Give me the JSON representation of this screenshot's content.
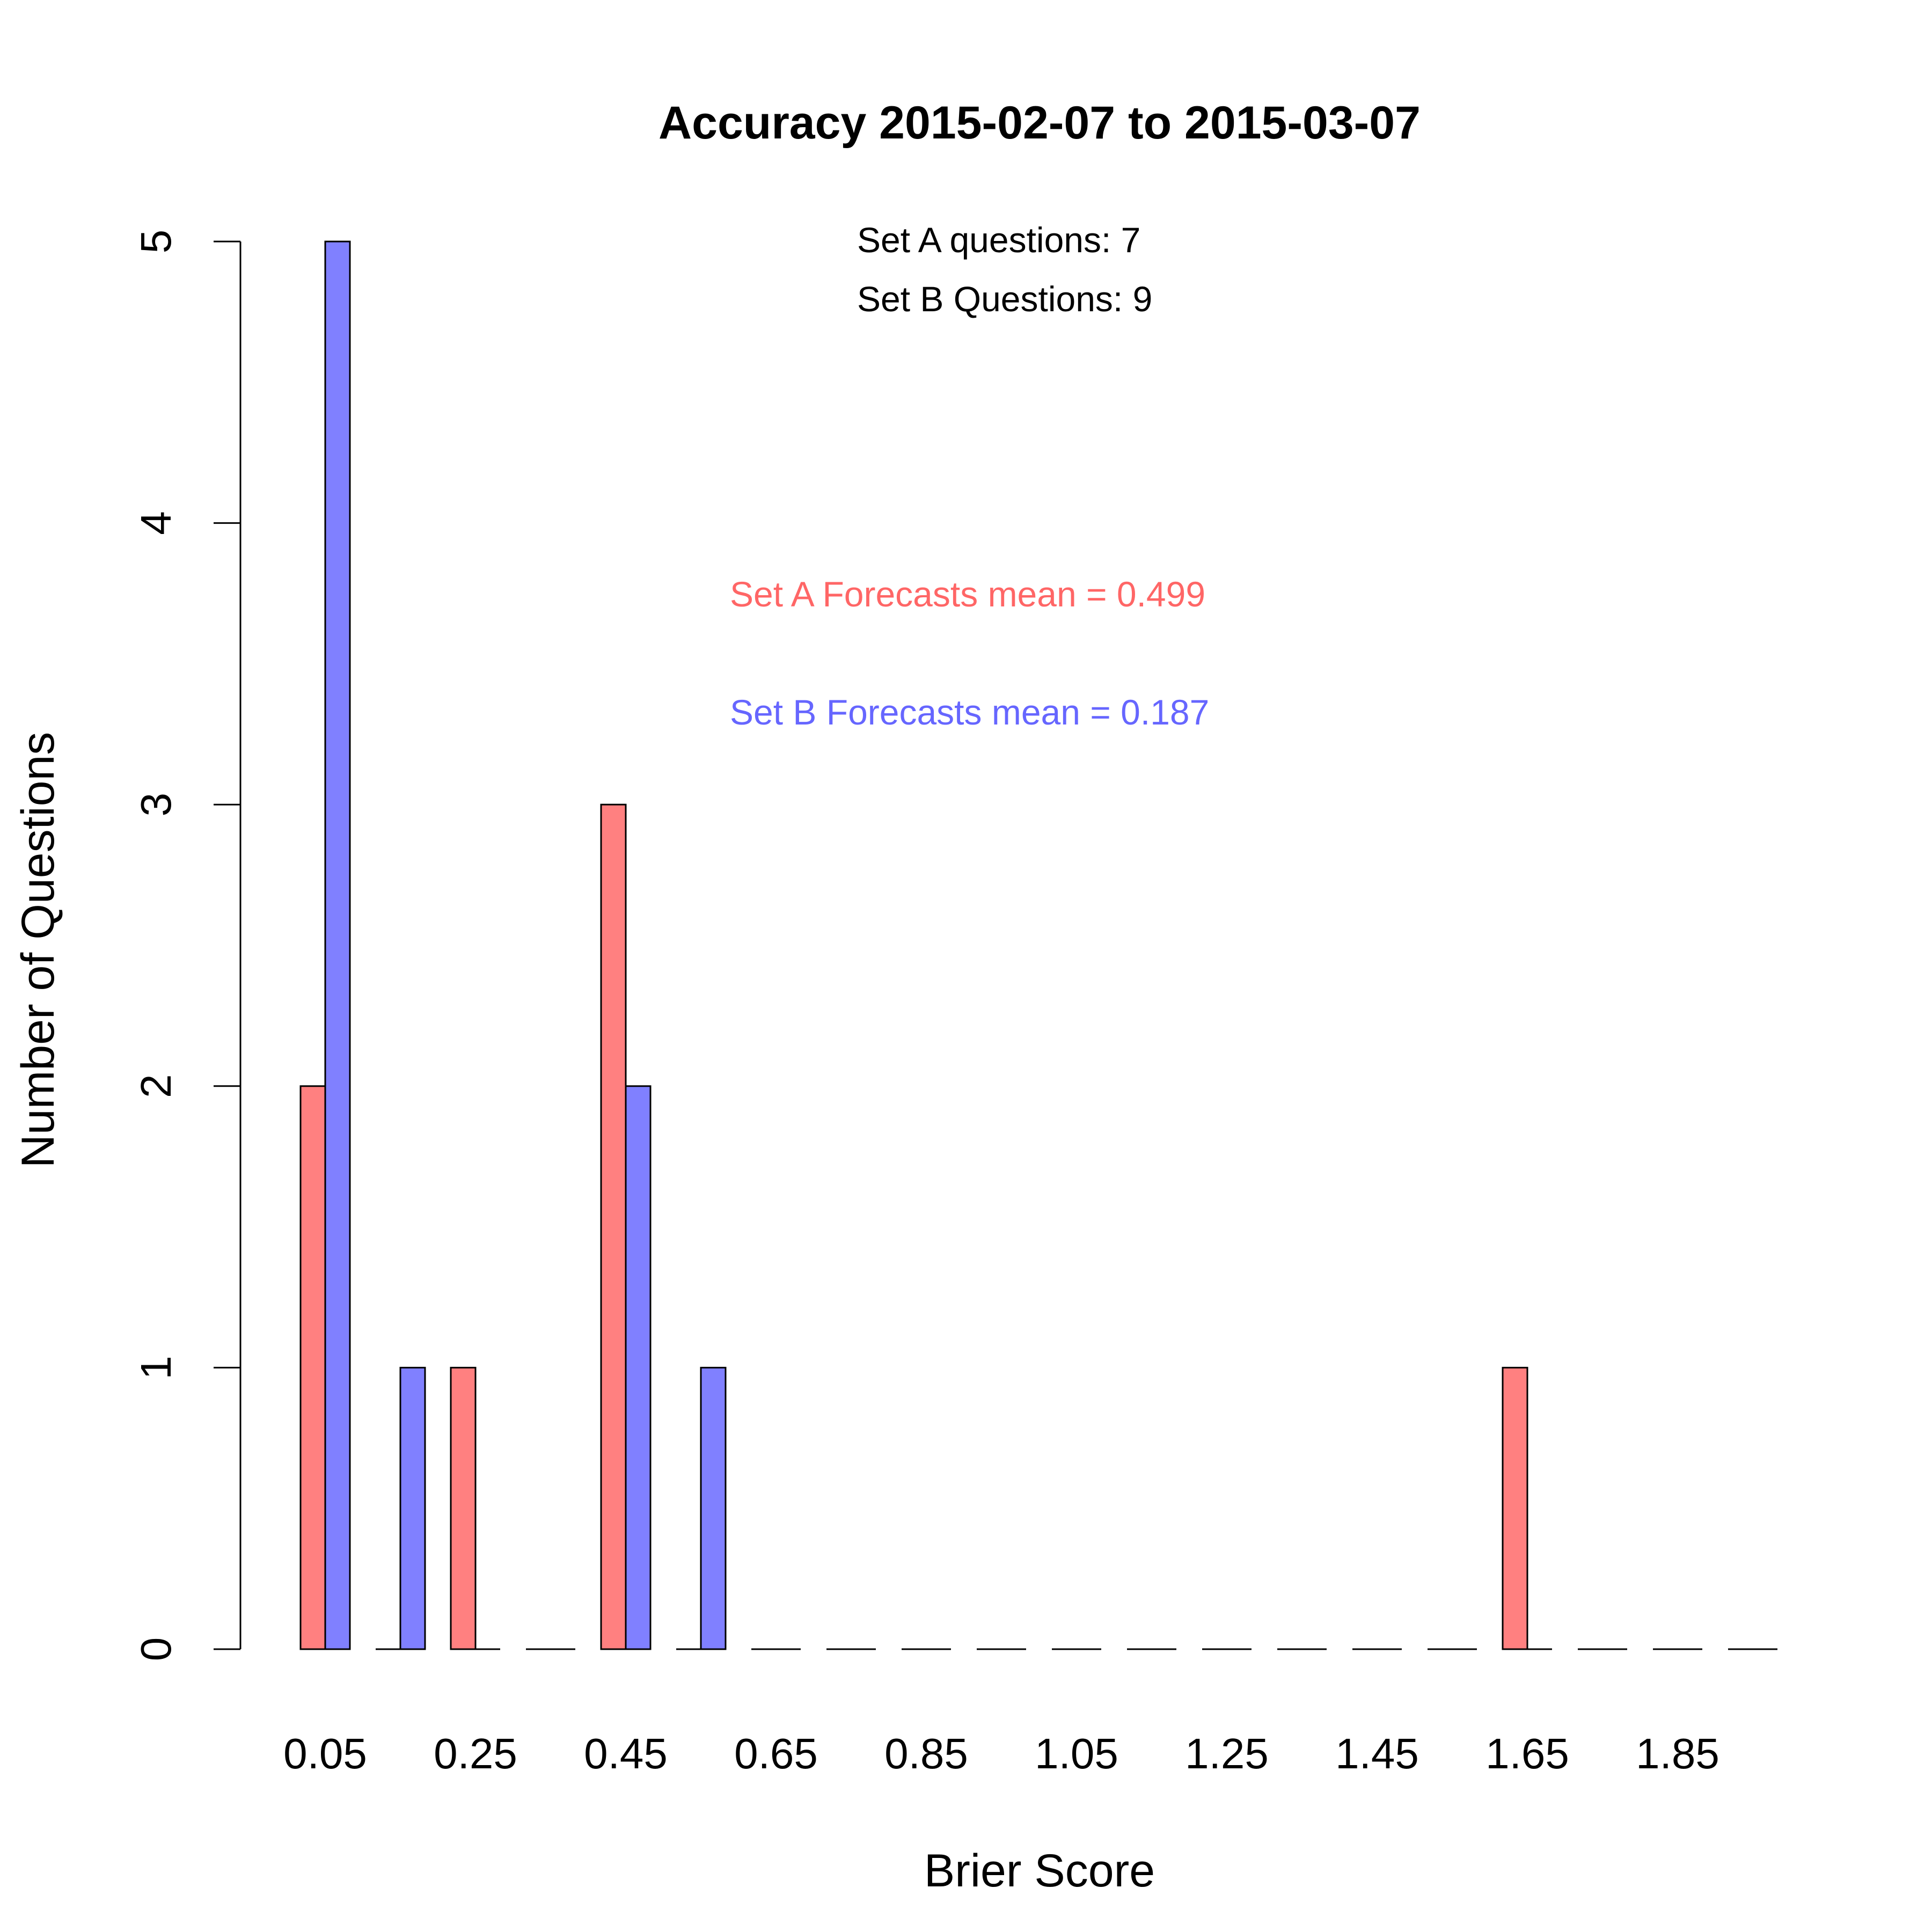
{
  "chart_data": {
    "type": "bar",
    "title": "Accuracy 2015-02-07 to 2015-03-07",
    "xlabel": "Brier Score",
    "ylabel": "Number of Questions",
    "ylim": [
      0,
      5
    ],
    "yticks": [
      "0",
      "1",
      "2",
      "3",
      "4",
      "5"
    ],
    "categories": [
      "0.05",
      "0.15",
      "0.25",
      "0.35",
      "0.45",
      "0.55",
      "0.65",
      "0.75",
      "0.85",
      "0.95",
      "1.05",
      "1.15",
      "1.25",
      "1.35",
      "1.45",
      "1.55",
      "1.65",
      "1.75",
      "1.85",
      "1.95"
    ],
    "xtick_labels": [
      "0.05",
      "0.25",
      "0.45",
      "0.65",
      "0.85",
      "1.05",
      "1.25",
      "1.45",
      "1.65",
      "1.85"
    ],
    "grid": false,
    "series": [
      {
        "key": "a",
        "values": [
          2,
          0,
          1,
          0,
          3,
          0,
          0,
          0,
          0,
          0,
          0,
          0,
          0,
          0,
          0,
          0,
          1,
          0,
          0,
          0
        ],
        "color": "#ff8080"
      },
      {
        "key": "b",
        "values": [
          5,
          1,
          0,
          0,
          2,
          1,
          0,
          0,
          0,
          0,
          0,
          0,
          0,
          0,
          0,
          0,
          0,
          0,
          0,
          0
        ],
        "color": "#8080ff"
      }
    ],
    "annotations": {
      "set_a_count": "Set A questions:  7",
      "set_b_count": "Set B Questions: 9",
      "set_a_mean": "Set A Forecasts mean = 0.499",
      "set_b_mean": "Set B Forecasts mean = 0.187",
      "set_a_mean_color": "#ff6666",
      "set_b_mean_color": "#6666ff"
    }
  }
}
